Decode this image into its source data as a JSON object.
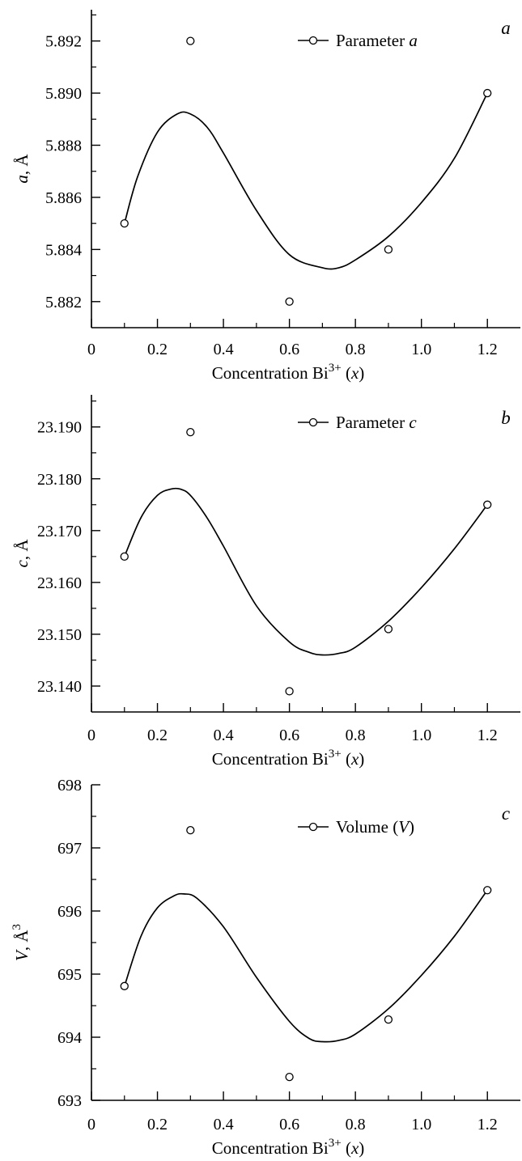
{
  "chart_data": [
    {
      "type": "scatter",
      "panel_label": "a",
      "ylabel_var": "a",
      "ylabel_unit": ", Å",
      "ylabel_sup": "",
      "xlabel": "Concentration Bi",
      "xlabel_sup": "3+",
      "xlabel_var": "(x)",
      "xlim": [
        0,
        1.3
      ],
      "ylim": [
        5.881,
        5.8932
      ],
      "xticks": [
        0,
        0.2,
        0.4,
        0.6,
        0.8,
        1.0,
        1.2
      ],
      "xtick_labels": [
        "0",
        "0.2",
        "0.4",
        "0.6",
        "0.8",
        "1.0",
        "1.2"
      ],
      "yticks": [
        5.882,
        5.884,
        5.886,
        5.888,
        5.89,
        5.892
      ],
      "ytick_labels": [
        "5.882",
        "5.884",
        "5.886",
        "5.888",
        "5.890",
        "5.892"
      ],
      "legend": {
        "text": "Parameter ",
        "var": "a",
        "suffix": "",
        "placement": "top-center"
      },
      "series": [
        {
          "name": "Parameter a",
          "marker": "open-circle",
          "x": [
            0.1,
            0.3,
            0.6,
            0.9,
            1.2
          ],
          "y": [
            5.885,
            5.892,
            5.882,
            5.884,
            5.89
          ]
        }
      ],
      "fit_curve": {
        "x": [
          0.1,
          0.14,
          0.2,
          0.26,
          0.3,
          0.35,
          0.4,
          0.5,
          0.6,
          0.7,
          0.75,
          0.8,
          0.9,
          1.0,
          1.1,
          1.2
        ],
        "y": [
          5.885,
          5.8868,
          5.8885,
          5.8892,
          5.8892,
          5.8887,
          5.8877,
          5.8855,
          5.8838,
          5.8833,
          5.8833,
          5.8836,
          5.8845,
          5.8858,
          5.8875,
          5.89
        ]
      }
    },
    {
      "type": "scatter",
      "panel_label": "b",
      "ylabel_var": "c",
      "ylabel_unit": ", Å",
      "ylabel_sup": "",
      "xlabel": "Concentration Bi",
      "xlabel_sup": "3+",
      "xlabel_var": "(x)",
      "xlim": [
        0,
        1.3
      ],
      "ylim": [
        23.135,
        23.1962
      ],
      "xticks": [
        0,
        0.2,
        0.4,
        0.6,
        0.8,
        1.0,
        1.2
      ],
      "xtick_labels": [
        "0",
        "0.2",
        "0.4",
        "0.6",
        "0.8",
        "1.0",
        "1.2"
      ],
      "yticks": [
        23.14,
        23.15,
        23.16,
        23.17,
        23.18,
        23.19
      ],
      "ytick_labels": [
        "23.140",
        "23.150",
        "23.160",
        "23.170",
        "23.180",
        "23.190"
      ],
      "legend": {
        "text": "Parameter ",
        "var": "c",
        "suffix": "",
        "placement": "top-center"
      },
      "series": [
        {
          "name": "Parameter c",
          "marker": "open-circle",
          "x": [
            0.1,
            0.3,
            0.6,
            0.9,
            1.2
          ],
          "y": [
            23.165,
            23.189,
            23.139,
            23.151,
            23.175
          ]
        }
      ],
      "fit_curve": {
        "x": [
          0.1,
          0.15,
          0.2,
          0.24,
          0.27,
          0.3,
          0.35,
          0.4,
          0.5,
          0.6,
          0.66,
          0.7,
          0.75,
          0.8,
          0.9,
          1.0,
          1.1,
          1.2
        ],
        "y": [
          23.165,
          23.1725,
          23.1768,
          23.178,
          23.178,
          23.1768,
          23.1725,
          23.167,
          23.1555,
          23.1485,
          23.1465,
          23.146,
          23.1463,
          23.1475,
          23.1525,
          23.159,
          23.1665,
          23.175
        ]
      }
    },
    {
      "type": "scatter",
      "panel_label": "c",
      "ylabel_var": "V",
      "ylabel_unit": ", Å",
      "ylabel_sup": "3",
      "xlabel": "Concentration Bi",
      "xlabel_sup": "3+",
      "xlabel_var": "(x)",
      "xlim": [
        0,
        1.3
      ],
      "ylim": [
        693,
        698
      ],
      "xticks": [
        0,
        0.2,
        0.4,
        0.6,
        0.8,
        1.0,
        1.2
      ],
      "xtick_labels": [
        "0",
        "0.2",
        "0.4",
        "0.6",
        "0.8",
        "1.0",
        "1.2"
      ],
      "yticks": [
        693,
        694,
        695,
        696,
        697,
        698
      ],
      "ytick_labels": [
        "693",
        "694",
        "695",
        "696",
        "697",
        "698"
      ],
      "legend": {
        "text": "Volume (",
        "var": "V",
        "suffix": ")",
        "placement": "top-center"
      },
      "series": [
        {
          "name": "Volume (V)",
          "marker": "open-circle",
          "x": [
            0.1,
            0.3,
            0.6,
            0.9,
            1.2
          ],
          "y": [
            694.81,
            697.28,
            693.37,
            694.28,
            696.33
          ]
        }
      ],
      "fit_curve": {
        "x": [
          0.1,
          0.15,
          0.2,
          0.25,
          0.28,
          0.32,
          0.4,
          0.5,
          0.6,
          0.66,
          0.7,
          0.75,
          0.8,
          0.9,
          1.0,
          1.1,
          1.2
        ],
        "y": [
          694.81,
          695.6,
          696.05,
          696.24,
          696.27,
          696.2,
          695.75,
          694.95,
          694.25,
          693.98,
          693.93,
          693.95,
          694.05,
          694.45,
          694.98,
          695.6,
          696.33
        ]
      }
    }
  ]
}
